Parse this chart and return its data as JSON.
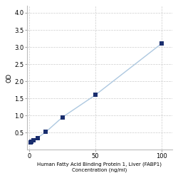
{
  "x_values": [
    0.78,
    1.56,
    3.13,
    6.25,
    12.5,
    25,
    50,
    100
  ],
  "y_values": [
    0.21,
    0.23,
    0.27,
    0.35,
    0.52,
    0.95,
    1.6,
    3.1
  ],
  "line_color": "#adc8e0",
  "marker_color": "#1a2e6e",
  "marker_size": 4,
  "marker_style": "s",
  "xlabel_line1": "Human Fatty Acid Binding Protein 1, Liver (FABP1)",
  "xlabel_line2": "Concentration (ng/ml)",
  "ylabel": "OD",
  "xlim": [
    -2,
    108
  ],
  "ylim": [
    0,
    4.2
  ],
  "yticks": [
    0.5,
    1.0,
    1.5,
    2.0,
    2.5,
    3.0,
    3.5,
    4.0
  ],
  "xticks": [
    0,
    50,
    100
  ],
  "xtick_labels": [
    "0",
    "50",
    "100"
  ],
  "grid_color": "#cccccc",
  "grid_style": "--",
  "bg_color": "#ffffff",
  "xlabel_fontsize": 5,
  "label_fontsize": 6,
  "tick_fontsize": 6,
  "line_width": 1.0
}
